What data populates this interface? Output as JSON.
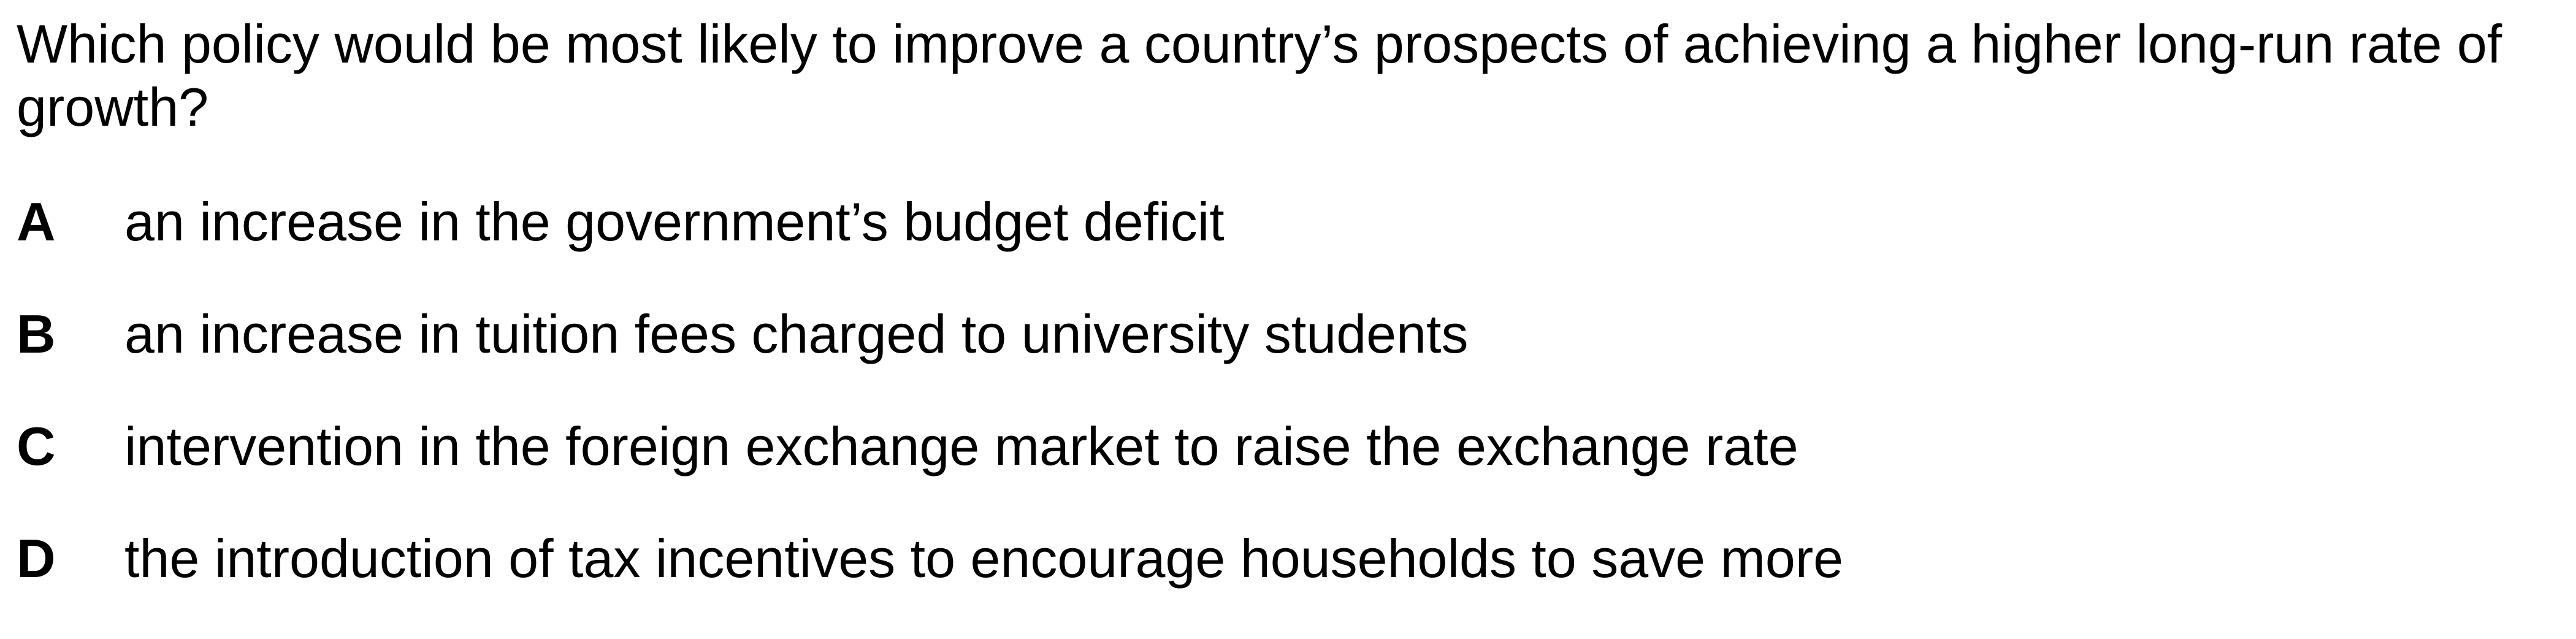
{
  "question": {
    "text": "Which policy would be most likely to improve a country’s prospects of achieving a higher long-run rate of growth?"
  },
  "options": [
    {
      "letter": "A",
      "text": "an increase in the government’s budget deficit"
    },
    {
      "letter": "B",
      "text": "an increase in tuition fees charged to university students"
    },
    {
      "letter": "C",
      "text": "intervention in the foreign exchange market to raise the exchange rate"
    },
    {
      "letter": "D",
      "text": "the introduction of tax incentives to encourage households to save more"
    }
  ]
}
